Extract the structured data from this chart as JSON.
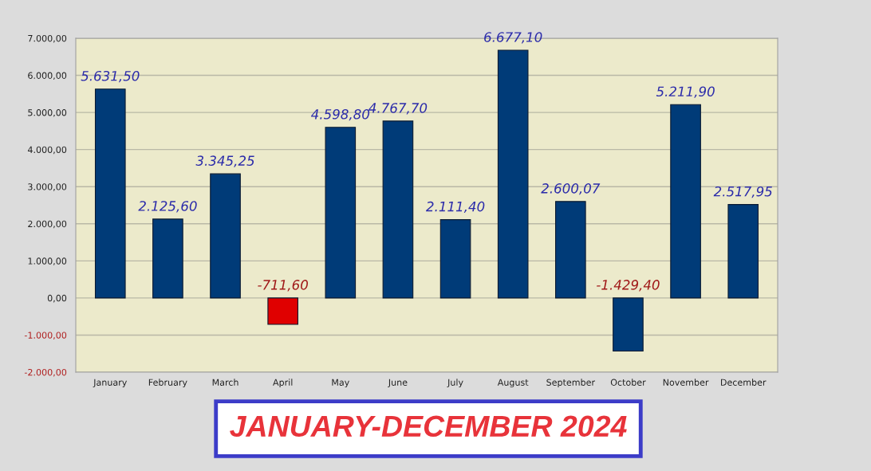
{
  "chart_data": {
    "type": "bar",
    "title": "JANUARY-DECEMBER 2024",
    "categories": [
      "January",
      "February",
      "March",
      "April",
      "May",
      "June",
      "July",
      "August",
      "September",
      "October",
      "November",
      "December"
    ],
    "values": [
      5631.5,
      2125.6,
      3345.25,
      -711.6,
      4598.8,
      4767.7,
      2111.4,
      6677.1,
      2600.07,
      -1429.4,
      5211.9,
      2517.95
    ],
    "colors": [
      "#003b78",
      "#003b78",
      "#003b78",
      "#e00000",
      "#003b78",
      "#003b78",
      "#003b78",
      "#003b78",
      "#003b78",
      "#003b78",
      "#003b78",
      "#003b78"
    ],
    "value_labels": [
      "5.631,50",
      "2.125,60",
      "3.345,25",
      "-711,60",
      "4.598,80",
      "4.767,70",
      "2.111,40",
      "6.677,10",
      "2.600,07",
      "-1.429,40",
      "5.211,90",
      "2.517,95"
    ],
    "ylim": [
      -2000,
      7000
    ],
    "yticks": [
      {
        "value": -2000,
        "label": "-2.000,00"
      },
      {
        "value": -1000,
        "label": "-1.000,00"
      },
      {
        "value": 0,
        "label": "0,00"
      },
      {
        "value": 1000,
        "label": "1.000,00"
      },
      {
        "value": 2000,
        "label": "2.000,00"
      },
      {
        "value": 3000,
        "label": "3.000,00"
      },
      {
        "value": 4000,
        "label": "4.000,00"
      },
      {
        "value": 5000,
        "label": "5.000,00"
      },
      {
        "value": 6000,
        "label": "6.000,00"
      },
      {
        "value": 7000,
        "label": "7.000,00"
      }
    ],
    "grid": "y"
  }
}
